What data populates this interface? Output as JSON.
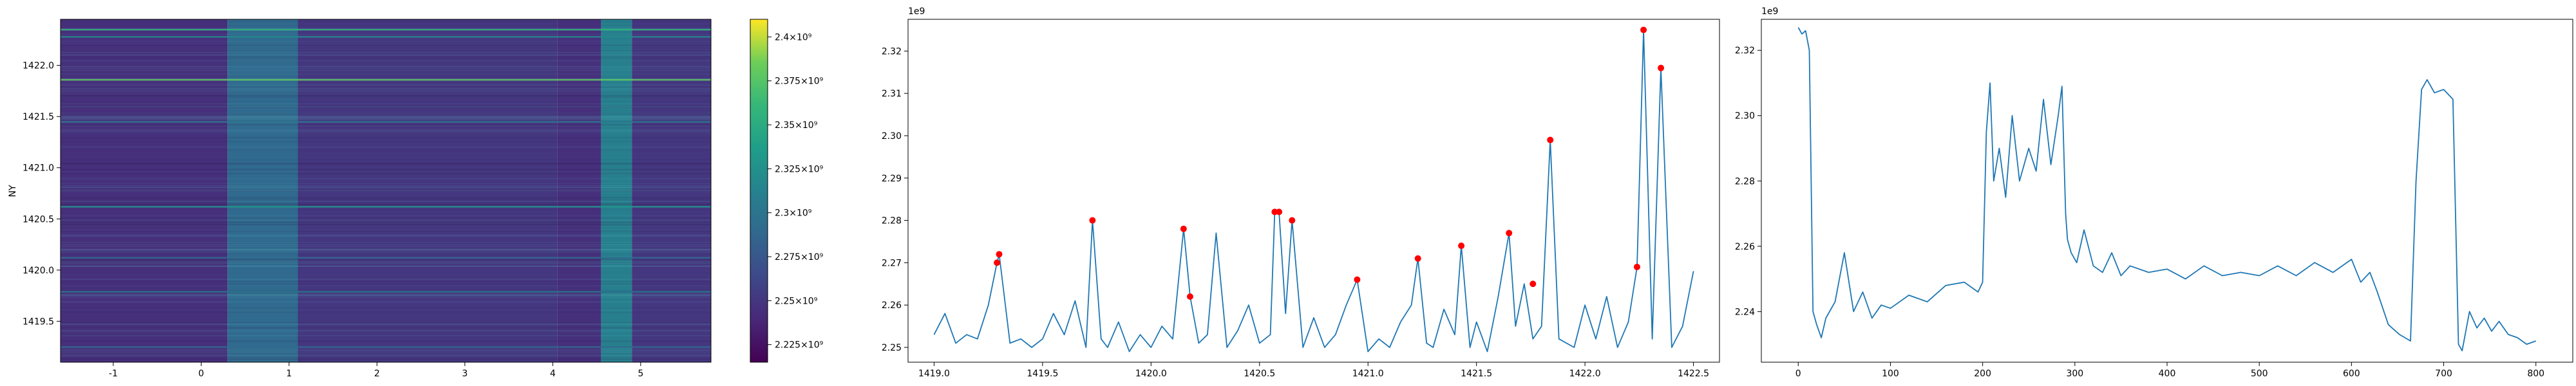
{
  "chart_data": [
    {
      "type": "heatmap",
      "ylabel": "NY",
      "xlabel": "",
      "xlim": [
        -1.6,
        5.8
      ],
      "ylim": [
        1419.1,
        1422.45
      ],
      "xticks": [
        "-1",
        "0",
        "1",
        "2",
        "3",
        "4",
        "5"
      ],
      "xtick_values": [
        -1,
        0,
        1,
        2,
        3,
        4,
        5
      ],
      "yticks": [
        "1419.5",
        "1420.0",
        "1420.5",
        "1421.0",
        "1421.5",
        "1422.0"
      ],
      "ytick_values": [
        1419.5,
        1420.0,
        1420.5,
        1421.0,
        1421.5,
        1422.0
      ],
      "colormap": "viridis",
      "vmin": 2215000000.0,
      "vmax": 2410000000.0,
      "colorbar_ticks": [
        "2.225×10⁹",
        "2.25×10⁹",
        "2.275×10⁹",
        "2.3×10⁹",
        "2.325×10⁹",
        "2.35×10⁹",
        "2.375×10⁹",
        "2.4×10⁹"
      ],
      "colorbar_tick_values": [
        2225000000.0,
        2250000000.0,
        2275000000.0,
        2300000000.0,
        2325000000.0,
        2350000000.0,
        2375000000.0,
        2400000000.0
      ],
      "bands": [
        {
          "x": [
            -1.6,
            0.3
          ],
          "value": 2245000000.0
        },
        {
          "x": [
            0.3,
            1.1
          ],
          "value": 2290000000.0
        },
        {
          "x": [
            1.1,
            4.05
          ],
          "value": 2250000000.0
        },
        {
          "x": [
            4.05,
            4.55
          ],
          "value": 2245000000.0
        },
        {
          "x": [
            4.55,
            4.9
          ],
          "value": 2310000000.0
        },
        {
          "x": [
            4.9,
            5.8
          ],
          "value": 2250000000.0
        }
      ],
      "bright_rows": [
        {
          "y": 1422.35,
          "value": 2360000000.0
        },
        {
          "y": 1422.28,
          "value": 2320000000.0
        },
        {
          "y": 1421.86,
          "value": 2380000000.0
        },
        {
          "y": 1421.45,
          "value": 2300000000.0
        },
        {
          "y": 1420.62,
          "value": 2330000000.0
        },
        {
          "y": 1420.12,
          "value": 2290000000.0
        },
        {
          "y": 1419.79,
          "value": 2300000000.0
        },
        {
          "y": 1419.25,
          "value": 2290000000.0
        }
      ]
    },
    {
      "type": "line",
      "offset_label": "1e9",
      "xlim": [
        1418.88,
        1422.62
      ],
      "ylim": [
        2.2465,
        2.3275
      ],
      "xticks": [
        "1419.0",
        "1419.5",
        "1420.0",
        "1420.5",
        "1421.0",
        "1421.5",
        "1422.0",
        "1422.5"
      ],
      "xtick_values": [
        1419.0,
        1419.5,
        1420.0,
        1420.5,
        1421.0,
        1421.5,
        1422.0,
        1422.5
      ],
      "yticks": [
        "2.25",
        "2.26",
        "2.27",
        "2.28",
        "2.29",
        "2.30",
        "2.31",
        "2.32"
      ],
      "ytick_values": [
        2.25,
        2.26,
        2.27,
        2.28,
        2.29,
        2.3,
        2.31,
        2.32
      ],
      "line_color": "#1f77b4",
      "peak_color": "#ff0000",
      "x": [
        1419.0,
        1419.05,
        1419.1,
        1419.15,
        1419.2,
        1419.25,
        1419.29,
        1419.3,
        1419.35,
        1419.4,
        1419.45,
        1419.5,
        1419.55,
        1419.6,
        1419.65,
        1419.7,
        1419.73,
        1419.77,
        1419.8,
        1419.85,
        1419.9,
        1419.95,
        1420.0,
        1420.05,
        1420.1,
        1420.15,
        1420.18,
        1420.22,
        1420.26,
        1420.3,
        1420.35,
        1420.4,
        1420.45,
        1420.5,
        1420.55,
        1420.57,
        1420.59,
        1420.62,
        1420.65,
        1420.7,
        1420.75,
        1420.8,
        1420.85,
        1420.9,
        1420.95,
        1421.0,
        1421.05,
        1421.1,
        1421.15,
        1421.2,
        1421.23,
        1421.27,
        1421.3,
        1421.35,
        1421.4,
        1421.43,
        1421.47,
        1421.5,
        1421.55,
        1421.6,
        1421.65,
        1421.68,
        1421.72,
        1421.76,
        1421.8,
        1421.84,
        1421.88,
        1421.95,
        1422.0,
        1422.05,
        1422.1,
        1422.15,
        1422.2,
        1422.24,
        1422.27,
        1422.31,
        1422.35,
        1422.4,
        1422.45,
        1422.5
      ],
      "y": [
        2.253,
        2.258,
        2.251,
        2.253,
        2.252,
        2.26,
        2.27,
        2.272,
        2.251,
        2.252,
        2.25,
        2.252,
        2.258,
        2.253,
        2.261,
        2.25,
        2.28,
        2.252,
        2.25,
        2.256,
        2.249,
        2.253,
        2.25,
        2.255,
        2.252,
        2.278,
        2.262,
        2.251,
        2.253,
        2.277,
        2.25,
        2.254,
        2.26,
        2.251,
        2.253,
        2.282,
        2.282,
        2.258,
        2.28,
        2.25,
        2.257,
        2.25,
        2.253,
        2.26,
        2.266,
        2.249,
        2.252,
        2.25,
        2.256,
        2.26,
        2.271,
        2.251,
        2.25,
        2.259,
        2.253,
        2.274,
        2.25,
        2.256,
        2.249,
        2.262,
        2.277,
        2.255,
        2.265,
        2.252,
        2.255,
        2.299,
        2.252,
        2.25,
        2.26,
        2.252,
        2.262,
        2.25,
        2.256,
        2.269,
        2.325,
        2.252,
        2.316,
        2.25,
        2.255,
        2.268
      ],
      "peaks": {
        "x": [
          1419.29,
          1419.3,
          1419.73,
          1420.15,
          1420.18,
          1420.57,
          1420.59,
          1420.65,
          1420.95,
          1421.23,
          1421.43,
          1421.65,
          1421.76,
          1421.84,
          1422.24,
          1422.27,
          1422.35
        ],
        "y": [
          2.27,
          2.272,
          2.28,
          2.278,
          2.262,
          2.282,
          2.282,
          2.28,
          2.266,
          2.271,
          2.274,
          2.277,
          2.265,
          2.299,
          2.269,
          2.325,
          2.316
        ]
      }
    },
    {
      "type": "line",
      "offset_label": "1e9",
      "xlim": [
        -40,
        840
      ],
      "ylim": [
        2.2245,
        2.3295
      ],
      "xticks": [
        "0",
        "100",
        "200",
        "300",
        "400",
        "500",
        "600",
        "700",
        "800"
      ],
      "xtick_values": [
        0,
        100,
        200,
        300,
        400,
        500,
        600,
        700,
        800
      ],
      "yticks": [
        "2.24",
        "2.26",
        "2.28",
        "2.30",
        "2.32"
      ],
      "ytick_values": [
        2.24,
        2.26,
        2.28,
        2.3,
        2.32
      ],
      "line_color": "#1f77b4",
      "x": [
        0,
        4,
        8,
        12,
        16,
        20,
        25,
        30,
        40,
        50,
        60,
        70,
        80,
        90,
        100,
        120,
        140,
        160,
        180,
        195,
        200,
        204,
        208,
        212,
        218,
        225,
        232,
        240,
        250,
        258,
        266,
        274,
        282,
        286,
        290,
        292,
        296,
        302,
        310,
        320,
        330,
        340,
        350,
        360,
        380,
        400,
        420,
        440,
        460,
        480,
        500,
        520,
        540,
        560,
        580,
        600,
        610,
        620,
        628,
        640,
        652,
        664,
        670,
        676,
        682,
        690,
        700,
        710,
        716,
        720,
        728,
        736,
        744,
        752,
        760,
        770,
        780,
        790,
        800
      ],
      "y": [
        2.327,
        2.325,
        2.326,
        2.32,
        2.24,
        2.236,
        2.232,
        2.238,
        2.243,
        2.258,
        2.24,
        2.246,
        2.238,
        2.242,
        2.241,
        2.245,
        2.243,
        2.248,
        2.249,
        2.246,
        2.249,
        2.295,
        2.31,
        2.28,
        2.29,
        2.275,
        2.3,
        2.28,
        2.29,
        2.283,
        2.305,
        2.285,
        2.3,
        2.309,
        2.27,
        2.262,
        2.258,
        2.255,
        2.265,
        2.254,
        2.252,
        2.258,
        2.251,
        2.254,
        2.252,
        2.253,
        2.25,
        2.254,
        2.251,
        2.252,
        2.251,
        2.254,
        2.251,
        2.255,
        2.252,
        2.256,
        2.249,
        2.252,
        2.246,
        2.236,
        2.233,
        2.231,
        2.28,
        2.308,
        2.311,
        2.307,
        2.308,
        2.305,
        2.23,
        2.228,
        2.24,
        2.235,
        2.238,
        2.234,
        2.237,
        2.233,
        2.232,
        2.23,
        2.231
      ]
    }
  ]
}
